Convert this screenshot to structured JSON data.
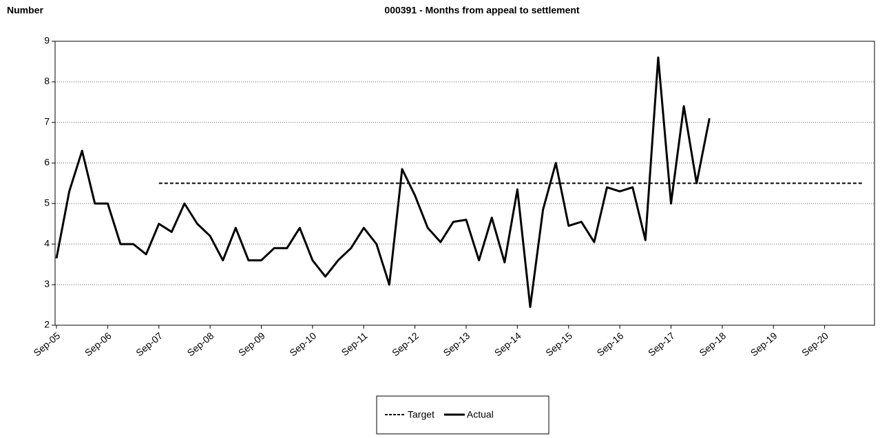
{
  "chart_data": {
    "type": "line",
    "title": "000391 - Months from appeal to settlement",
    "y_label": "Number",
    "categories": [
      "Sep-05",
      null,
      null,
      null,
      "Sep-06",
      null,
      null,
      null,
      "Sep-07",
      null,
      null,
      null,
      "Sep-08",
      null,
      null,
      null,
      "Sep-09",
      null,
      null,
      null,
      "Sep-10",
      null,
      null,
      null,
      "Sep-11",
      null,
      null,
      null,
      "Sep-12",
      null,
      null,
      null,
      "Sep-13",
      null,
      null,
      null,
      "Sep-14",
      null,
      null,
      null,
      "Sep-15",
      null,
      null,
      null,
      "Sep-16",
      null,
      null,
      null,
      "Sep-17",
      null,
      null,
      null,
      "Sep-18",
      null,
      null,
      null,
      "Sep-19",
      null,
      null,
      null,
      "Sep-20",
      null,
      null,
      null,
      null
    ],
    "series": [
      {
        "name": "Target",
        "color": "#000000",
        "dash": true,
        "values": [
          null,
          null,
          null,
          null,
          null,
          null,
          null,
          null,
          5.5,
          5.5,
          5.5,
          5.5,
          5.5,
          5.5,
          5.5,
          5.5,
          5.5,
          5.5,
          5.5,
          5.5,
          5.5,
          5.5,
          5.5,
          5.5,
          5.5,
          5.5,
          5.5,
          5.5,
          5.5,
          5.5,
          5.5,
          5.5,
          5.5,
          5.5,
          5.5,
          5.5,
          5.5,
          5.5,
          5.5,
          5.5,
          5.5,
          5.5,
          5.5,
          5.5,
          5.5,
          5.5,
          5.5,
          5.5,
          5.5,
          5.5,
          5.5,
          5.5,
          5.5,
          5.5,
          5.5,
          5.5,
          5.5,
          5.5,
          5.5,
          5.5,
          5.5,
          5.5,
          5.5,
          5.5,
          null
        ]
      },
      {
        "name": "Actual",
        "color": "#000000",
        "dash": false,
        "values": [
          3.65,
          5.3,
          6.3,
          5.0,
          5.0,
          4.0,
          4.0,
          3.75,
          4.5,
          4.3,
          5.0,
          4.5,
          4.2,
          3.6,
          4.4,
          3.6,
          3.6,
          3.9,
          3.9,
          4.4,
          3.6,
          3.2,
          3.6,
          3.9,
          4.4,
          4.0,
          3.0,
          5.85,
          5.2,
          4.4,
          4.05,
          4.55,
          4.6,
          3.6,
          4.65,
          3.55,
          5.35,
          2.45,
          4.85,
          6.0,
          4.45,
          4.55,
          4.05,
          5.4,
          5.3,
          5.4,
          4.1,
          8.6,
          5.0,
          7.4,
          5.5,
          7.1,
          null,
          null,
          null,
          null,
          null,
          null,
          null,
          null,
          null,
          null,
          null,
          null,
          null
        ]
      }
    ],
    "ylim": [
      2,
      9
    ],
    "yticks": [
      2,
      3,
      4,
      5,
      6,
      7,
      8,
      9
    ],
    "grid": true,
    "legend": "bottom"
  }
}
